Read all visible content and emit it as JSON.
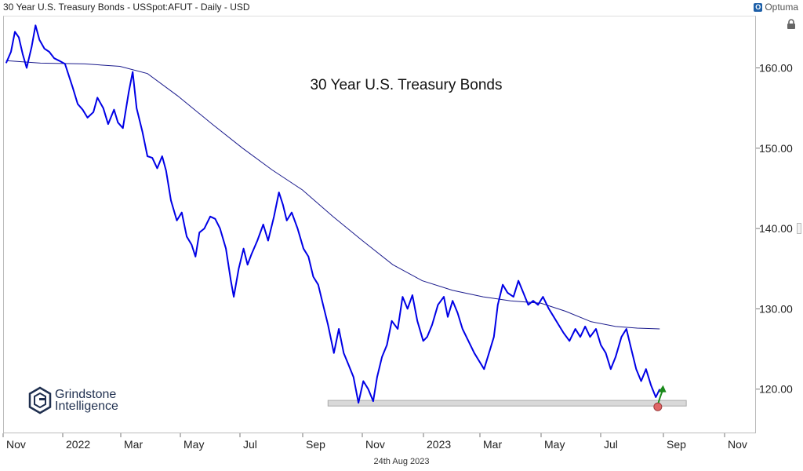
{
  "header": {
    "title": "30 Year U.S. Treasury Bonds - USSpot:AFUT - Daily - USD"
  },
  "brand": {
    "name": "Optuma",
    "mark": "O"
  },
  "logo": {
    "line1": "Grindstone",
    "line2": "Intelligence"
  },
  "footer": {
    "date": "24th Aug 2023"
  },
  "colors": {
    "price": "#0000e6",
    "ma": "#1a1a8c",
    "support": "#d9d9d9",
    "arrow": "#1a8a1a",
    "marker": "#e06666"
  },
  "chart_data": {
    "type": "line",
    "title": "30 Year U.S. Treasury Bonds",
    "x_ticks": [
      "Nov",
      "2022",
      "Mar",
      "May",
      "Jul",
      "Sep",
      "Nov",
      "2023",
      "Mar",
      "May",
      "Jul",
      "Sep",
      "Nov"
    ],
    "y_ticks": [
      "160.00",
      "150.00",
      "140.00",
      "130.00",
      "120.00"
    ],
    "ylim": [
      114.5,
      166.5
    ],
    "xlim": [
      "2021-10-24",
      "2023-11-30"
    ],
    "support_zone": {
      "from": "2022-09-20",
      "to": "2023-09-20",
      "low": 117.9,
      "high": 118.6
    },
    "series": [
      {
        "type": "price",
        "points": [
          [
            "2021-10-27",
            160.6
          ],
          [
            "2021-11-01",
            162.0
          ],
          [
            "2021-11-05",
            164.5
          ],
          [
            "2021-11-09",
            163.8
          ],
          [
            "2021-11-13",
            161.7
          ],
          [
            "2021-11-17",
            160.0
          ],
          [
            "2021-11-22",
            162.6
          ],
          [
            "2021-11-26",
            165.3
          ],
          [
            "2021-11-30",
            163.5
          ],
          [
            "2021-12-05",
            162.4
          ],
          [
            "2021-12-10",
            162.0
          ],
          [
            "2021-12-15",
            161.2
          ],
          [
            "2021-12-20",
            160.9
          ],
          [
            "2021-12-26",
            160.5
          ],
          [
            "2022-01-03",
            157.5
          ],
          [
            "2022-01-08",
            155.5
          ],
          [
            "2022-01-13",
            154.8
          ],
          [
            "2022-01-18",
            153.8
          ],
          [
            "2022-01-24",
            154.5
          ],
          [
            "2022-01-28",
            156.3
          ],
          [
            "2022-02-03",
            155.0
          ],
          [
            "2022-02-08",
            153.0
          ],
          [
            "2022-02-14",
            154.8
          ],
          [
            "2022-02-18",
            153.2
          ],
          [
            "2022-02-23",
            152.5
          ],
          [
            "2022-03-01",
            157.0
          ],
          [
            "2022-03-05",
            159.5
          ],
          [
            "2022-03-09",
            155.0
          ],
          [
            "2022-03-15",
            152.0
          ],
          [
            "2022-03-20",
            149.0
          ],
          [
            "2022-03-25",
            148.8
          ],
          [
            "2022-03-30",
            147.5
          ],
          [
            "2022-04-04",
            149.0
          ],
          [
            "2022-04-08",
            147.2
          ],
          [
            "2022-04-13",
            143.5
          ],
          [
            "2022-04-19",
            141.0
          ],
          [
            "2022-04-24",
            142.0
          ],
          [
            "2022-04-29",
            139.0
          ],
          [
            "2022-05-04",
            138.0
          ],
          [
            "2022-05-08",
            136.5
          ],
          [
            "2022-05-12",
            139.5
          ],
          [
            "2022-05-17",
            140.0
          ],
          [
            "2022-05-23",
            141.5
          ],
          [
            "2022-05-28",
            141.2
          ],
          [
            "2022-06-02",
            140.0
          ],
          [
            "2022-06-08",
            137.5
          ],
          [
            "2022-06-13",
            133.5
          ],
          [
            "2022-06-16",
            131.5
          ],
          [
            "2022-06-21",
            135.0
          ],
          [
            "2022-06-26",
            137.5
          ],
          [
            "2022-06-30",
            135.5
          ],
          [
            "2022-07-04",
            136.8
          ],
          [
            "2022-07-10",
            138.5
          ],
          [
            "2022-07-16",
            140.5
          ],
          [
            "2022-07-21",
            138.5
          ],
          [
            "2022-07-27",
            141.5
          ],
          [
            "2022-08-01",
            144.5
          ],
          [
            "2022-08-05",
            143.0
          ],
          [
            "2022-08-09",
            141.0
          ],
          [
            "2022-08-14",
            142.0
          ],
          [
            "2022-08-20",
            140.0
          ],
          [
            "2022-08-26",
            137.5
          ],
          [
            "2022-08-31",
            136.5
          ],
          [
            "2022-09-05",
            134.0
          ],
          [
            "2022-09-10",
            133.0
          ],
          [
            "2022-09-15",
            130.5
          ],
          [
            "2022-09-20",
            128.0
          ],
          [
            "2022-09-26",
            124.5
          ],
          [
            "2022-10-01",
            127.5
          ],
          [
            "2022-10-06",
            124.5
          ],
          [
            "2022-10-11",
            123.0
          ],
          [
            "2022-10-16",
            121.5
          ],
          [
            "2022-10-21",
            118.3
          ],
          [
            "2022-10-26",
            121.0
          ],
          [
            "2022-10-31",
            120.0
          ],
          [
            "2022-11-05",
            118.5
          ],
          [
            "2022-11-09",
            121.5
          ],
          [
            "2022-11-14",
            124.0
          ],
          [
            "2022-11-19",
            125.5
          ],
          [
            "2022-11-24",
            128.5
          ],
          [
            "2022-11-30",
            127.5
          ],
          [
            "2022-12-05",
            131.5
          ],
          [
            "2022-12-10",
            130.0
          ],
          [
            "2022-12-15",
            131.7
          ],
          [
            "2022-12-20",
            128.5
          ],
          [
            "2022-12-26",
            126.0
          ],
          [
            "2022-12-30",
            126.5
          ],
          [
            "2023-01-04",
            128.0
          ],
          [
            "2023-01-10",
            130.5
          ],
          [
            "2023-01-16",
            131.5
          ],
          [
            "2023-01-20",
            129.0
          ],
          [
            "2023-01-25",
            131.0
          ],
          [
            "2023-01-30",
            129.5
          ],
          [
            "2023-02-04",
            127.5
          ],
          [
            "2023-02-10",
            126.0
          ],
          [
            "2023-02-16",
            124.5
          ],
          [
            "2023-02-21",
            123.5
          ],
          [
            "2023-02-26",
            122.5
          ],
          [
            "2023-03-03",
            124.5
          ],
          [
            "2023-03-08",
            126.5
          ],
          [
            "2023-03-12",
            130.5
          ],
          [
            "2023-03-17",
            133.0
          ],
          [
            "2023-03-22",
            132.0
          ],
          [
            "2023-03-28",
            131.5
          ],
          [
            "2023-04-02",
            133.5
          ],
          [
            "2023-04-07",
            132.0
          ],
          [
            "2023-04-12",
            130.5
          ],
          [
            "2023-04-17",
            131.0
          ],
          [
            "2023-04-22",
            130.5
          ],
          [
            "2023-04-27",
            131.5
          ],
          [
            "2023-05-03",
            130.0
          ],
          [
            "2023-05-08",
            129.0
          ],
          [
            "2023-05-13",
            128.0
          ],
          [
            "2023-05-18",
            127.0
          ],
          [
            "2023-05-24",
            126.0
          ],
          [
            "2023-05-30",
            127.5
          ],
          [
            "2023-06-04",
            126.5
          ],
          [
            "2023-06-09",
            127.8
          ],
          [
            "2023-06-14",
            126.5
          ],
          [
            "2023-06-20",
            127.5
          ],
          [
            "2023-06-25",
            125.5
          ],
          [
            "2023-06-30",
            124.5
          ],
          [
            "2023-07-05",
            122.5
          ],
          [
            "2023-07-10",
            124.0
          ],
          [
            "2023-07-16",
            126.5
          ],
          [
            "2023-07-21",
            127.5
          ],
          [
            "2023-07-26",
            125.0
          ],
          [
            "2023-07-31",
            122.5
          ],
          [
            "2023-08-05",
            121.0
          ],
          [
            "2023-08-10",
            122.5
          ],
          [
            "2023-08-15",
            120.5
          ],
          [
            "2023-08-20",
            119.0
          ],
          [
            "2023-08-24",
            120.0
          ]
        ]
      },
      {
        "type": "moving-average",
        "points": [
          [
            "2021-10-27",
            160.9
          ],
          [
            "2021-12-01",
            160.6
          ],
          [
            "2022-01-15",
            160.5
          ],
          [
            "2022-02-20",
            160.2
          ],
          [
            "2022-03-20",
            159.3
          ],
          [
            "2022-04-20",
            156.5
          ],
          [
            "2022-05-25",
            153.0
          ],
          [
            "2022-06-25",
            150.0
          ],
          [
            "2022-07-25",
            147.3
          ],
          [
            "2022-08-25",
            144.8
          ],
          [
            "2022-09-25",
            141.5
          ],
          [
            "2022-10-25",
            138.5
          ],
          [
            "2022-11-25",
            135.5
          ],
          [
            "2022-12-25",
            133.5
          ],
          [
            "2023-01-25",
            132.3
          ],
          [
            "2023-02-25",
            131.5
          ],
          [
            "2023-03-25",
            131.0
          ],
          [
            "2023-04-25",
            130.7
          ],
          [
            "2023-05-20",
            129.7
          ],
          [
            "2023-06-15",
            128.4
          ],
          [
            "2023-07-10",
            127.8
          ],
          [
            "2023-08-01",
            127.6
          ],
          [
            "2023-08-24",
            127.5
          ]
        ]
      }
    ],
    "annotations": [
      {
        "type": "marker",
        "x": "2023-08-22",
        "y": 117.8
      },
      {
        "type": "arrow",
        "x": "2023-08-25",
        "from": 118.3,
        "to": 120.3
      }
    ]
  }
}
